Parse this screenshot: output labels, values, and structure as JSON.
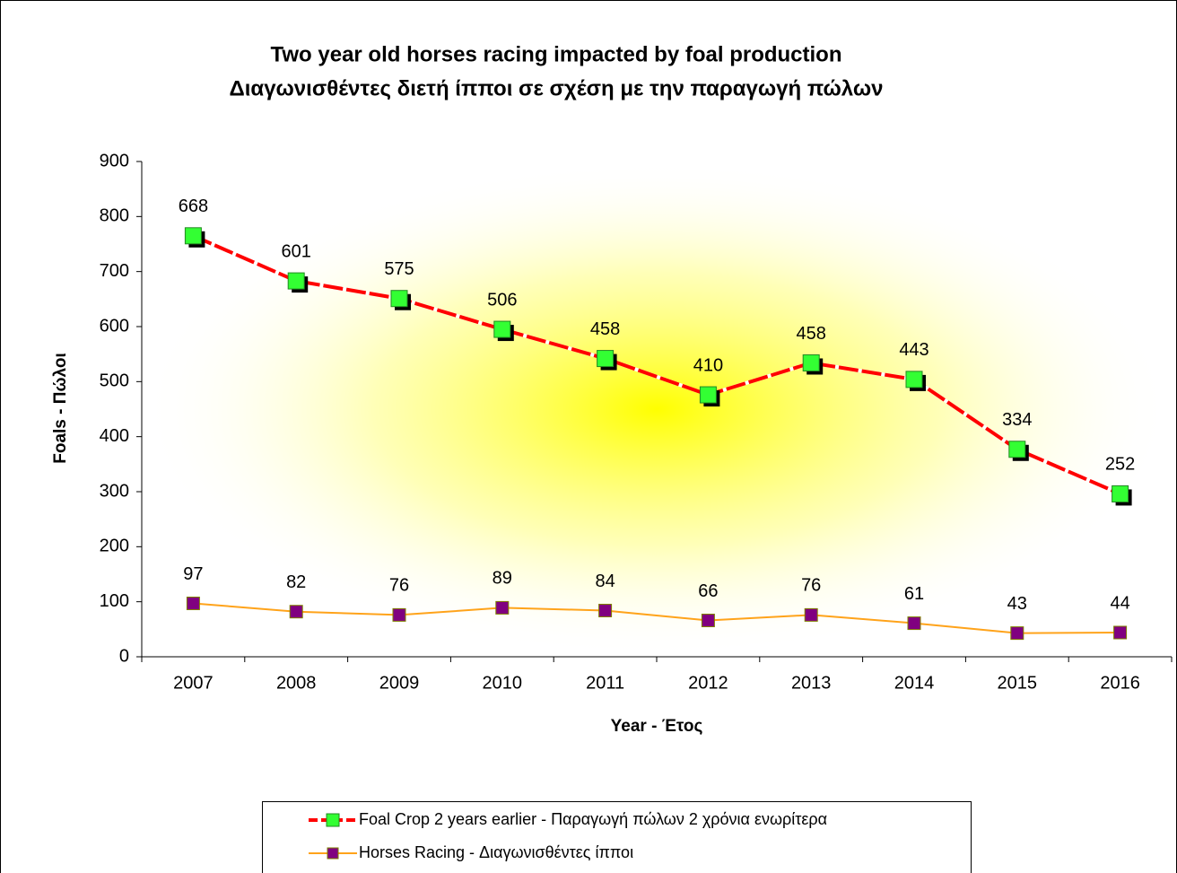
{
  "chart_data": {
    "type": "line",
    "stacked": true,
    "title": "Two year old horses racing impacted by foal production",
    "subtitle": "Διαγωνισθέντες διετή ίπποι σε σχέση με την παραγωγή πώλων",
    "x_label": "Year - Έτος",
    "y_label": "Foals - Πώλοι",
    "categories": [
      "2007",
      "2008",
      "2009",
      "2010",
      "2011",
      "2012",
      "2013",
      "2014",
      "2015",
      "2016"
    ],
    "series": [
      {
        "name": "Horses Racing - Διαγωνισθέντες ίπποι",
        "color": "#ffa31a",
        "marker_color": "#800080",
        "values": [
          97,
          82,
          76,
          89,
          84,
          66,
          76,
          61,
          43,
          44
        ]
      },
      {
        "name": "Foal Crop 2 years earlier - Παραγωγή πώλων 2 χρόνια ενωρίτερα",
        "color": "#ff0000",
        "marker_color": "#33ff33",
        "values": [
          668,
          601,
          575,
          506,
          458,
          410,
          458,
          443,
          334,
          252
        ]
      }
    ],
    "ylim": [
      0,
      900
    ],
    "yticks": [
      0,
      100,
      200,
      300,
      400,
      500,
      600,
      700,
      800,
      900
    ],
    "legend": "bottom"
  }
}
